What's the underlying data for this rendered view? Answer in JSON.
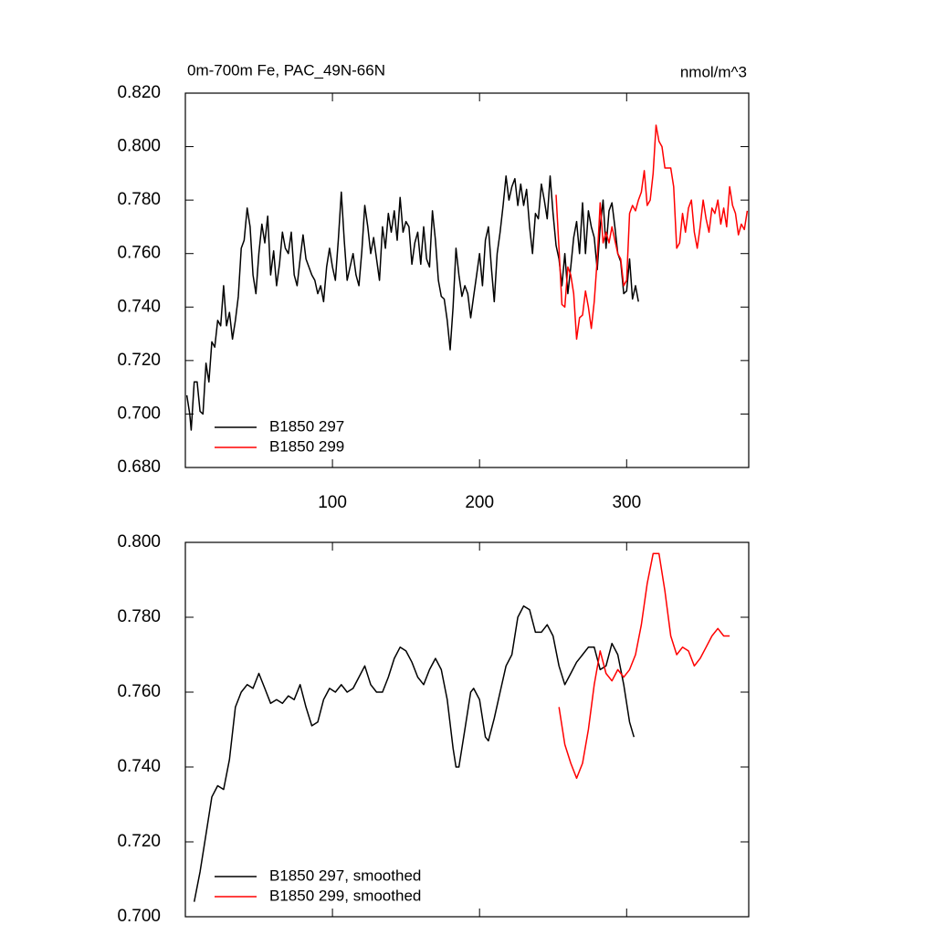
{
  "chart_data": [
    {
      "type": "line",
      "title": "0m-700m Fe, PAC_49N-66N",
      "subtitle": "nmol/m^3",
      "xlim": [
        0,
        383
      ],
      "xticks": [
        100,
        200,
        300
      ],
      "ylim": [
        0.68,
        0.82
      ],
      "yticks": [
        {
          "value": 0.68,
          "label": "0.680"
        },
        {
          "value": 0.7,
          "label": "0.700"
        },
        {
          "value": 0.72,
          "label": "0.720"
        },
        {
          "value": 0.74,
          "label": "0.740"
        },
        {
          "value": 0.76,
          "label": "0.760"
        },
        {
          "value": 0.78,
          "label": "0.780"
        },
        {
          "value": 0.8,
          "label": "0.800"
        },
        {
          "value": 0.82,
          "label": "0.820"
        }
      ],
      "legend": "lower left",
      "series": [
        {
          "name": "B1850 297",
          "color": "#000000",
          "x": [
            1,
            3,
            4,
            6,
            8,
            10,
            12,
            14,
            16,
            18,
            20,
            22,
            24,
            26,
            28,
            30,
            32,
            34,
            36,
            38,
            40,
            42,
            44,
            46,
            48,
            50,
            52,
            54,
            56,
            58,
            60,
            62,
            64,
            66,
            68,
            70,
            72,
            74,
            76,
            78,
            80,
            82,
            84,
            86,
            88,
            90,
            92,
            94,
            96,
            98,
            100,
            102,
            104,
            106,
            108,
            110,
            112,
            114,
            116,
            118,
            120,
            122,
            124,
            126,
            128,
            130,
            132,
            134,
            136,
            138,
            140,
            142,
            144,
            146,
            148,
            150,
            152,
            154,
            156,
            158,
            160,
            162,
            164,
            166,
            168,
            170,
            172,
            174,
            176,
            178,
            180,
            182,
            184,
            186,
            188,
            190,
            192,
            194,
            196,
            198,
            200,
            202,
            204,
            206,
            208,
            210,
            212,
            214,
            216,
            218,
            220,
            222,
            224,
            226,
            228,
            230,
            232,
            234,
            236,
            238,
            240,
            242,
            244,
            246,
            248,
            250,
            252,
            254,
            256,
            258,
            260,
            262,
            264,
            266,
            268,
            270,
            272,
            274,
            276,
            278,
            280,
            282,
            284,
            286,
            288,
            290,
            292,
            294,
            296,
            298,
            300,
            302,
            304,
            306,
            308
          ],
          "values": [
            0.707,
            0.7,
            0.694,
            0.712,
            0.712,
            0.701,
            0.7,
            0.719,
            0.712,
            0.727,
            0.725,
            0.735,
            0.733,
            0.748,
            0.733,
            0.738,
            0.728,
            0.735,
            0.744,
            0.762,
            0.765,
            0.777,
            0.77,
            0.752,
            0.745,
            0.76,
            0.771,
            0.764,
            0.774,
            0.752,
            0.761,
            0.748,
            0.756,
            0.768,
            0.762,
            0.76,
            0.768,
            0.752,
            0.748,
            0.758,
            0.767,
            0.758,
            0.755,
            0.752,
            0.75,
            0.745,
            0.748,
            0.742,
            0.755,
            0.762,
            0.755,
            0.75,
            0.765,
            0.783,
            0.765,
            0.75,
            0.755,
            0.76,
            0.752,
            0.748,
            0.761,
            0.778,
            0.77,
            0.76,
            0.766,
            0.758,
            0.75,
            0.77,
            0.762,
            0.775,
            0.768,
            0.776,
            0.765,
            0.781,
            0.768,
            0.772,
            0.77,
            0.756,
            0.764,
            0.768,
            0.756,
            0.77,
            0.758,
            0.755,
            0.776,
            0.765,
            0.75,
            0.744,
            0.743,
            0.735,
            0.724,
            0.74,
            0.762,
            0.752,
            0.744,
            0.748,
            0.745,
            0.736,
            0.744,
            0.752,
            0.76,
            0.748,
            0.765,
            0.77,
            0.755,
            0.742,
            0.76,
            0.768,
            0.778,
            0.789,
            0.78,
            0.785,
            0.788,
            0.778,
            0.786,
            0.778,
            0.784,
            0.77,
            0.76,
            0.775,
            0.773,
            0.786,
            0.78,
            0.773,
            0.789,
            0.775,
            0.763,
            0.758,
            0.748,
            0.76,
            0.745,
            0.755,
            0.766,
            0.772,
            0.76,
            0.779,
            0.76,
            0.776,
            0.77,
            0.766,
            0.754,
            0.77,
            0.78,
            0.762,
            0.776,
            0.779,
            0.77,
            0.76,
            0.757,
            0.745,
            0.746,
            0.758,
            0.743,
            0.748,
            0.742
          ]
        },
        {
          "name": "B1850 299",
          "color": "#ff0000",
          "x": [
            252,
            254,
            256,
            258,
            260,
            262,
            264,
            266,
            268,
            270,
            272,
            274,
            276,
            278,
            280,
            282,
            284,
            286,
            288,
            290,
            292,
            294,
            296,
            298,
            300,
            302,
            304,
            306,
            308,
            310,
            312,
            314,
            316,
            318,
            320,
            322,
            324,
            326,
            328,
            330,
            332,
            334,
            336,
            338,
            340,
            342,
            344,
            346,
            348,
            350,
            352,
            354,
            356,
            358,
            360,
            362,
            364,
            366,
            368,
            370,
            372,
            374,
            376,
            378,
            380,
            382
          ],
          "values": [
            0.782,
            0.762,
            0.741,
            0.74,
            0.755,
            0.752,
            0.745,
            0.728,
            0.736,
            0.737,
            0.746,
            0.74,
            0.732,
            0.742,
            0.758,
            0.779,
            0.764,
            0.768,
            0.764,
            0.77,
            0.765,
            0.76,
            0.758,
            0.748,
            0.75,
            0.775,
            0.778,
            0.776,
            0.78,
            0.783,
            0.791,
            0.778,
            0.78,
            0.79,
            0.808,
            0.802,
            0.8,
            0.792,
            0.792,
            0.792,
            0.785,
            0.762,
            0.764,
            0.775,
            0.768,
            0.777,
            0.78,
            0.768,
            0.762,
            0.77,
            0.78,
            0.773,
            0.768,
            0.777,
            0.775,
            0.78,
            0.771,
            0.777,
            0.77,
            0.785,
            0.778,
            0.775,
            0.767,
            0.771,
            0.769,
            0.776
          ]
        }
      ]
    },
    {
      "type": "line",
      "xlim": [
        0,
        383
      ],
      "xticks": [
        100,
        200,
        300
      ],
      "ylim": [
        0.7,
        0.8
      ],
      "yticks": [
        {
          "value": 0.7,
          "label": "0.700"
        },
        {
          "value": 0.72,
          "label": "0.720"
        },
        {
          "value": 0.74,
          "label": "0.740"
        },
        {
          "value": 0.76,
          "label": "0.760"
        },
        {
          "value": 0.78,
          "label": "0.780"
        },
        {
          "value": 0.8,
          "label": "0.800"
        }
      ],
      "legend": "lower left",
      "series": [
        {
          "name": "B1850 297, smoothed",
          "color": "#000000",
          "x": [
            6,
            10,
            14,
            18,
            22,
            26,
            30,
            34,
            38,
            42,
            46,
            50,
            54,
            58,
            62,
            66,
            70,
            74,
            78,
            82,
            86,
            90,
            94,
            98,
            102,
            106,
            110,
            114,
            118,
            122,
            126,
            130,
            134,
            138,
            142,
            146,
            150,
            154,
            158,
            162,
            166,
            170,
            174,
            178,
            182,
            184,
            186,
            190,
            194,
            196,
            200,
            204,
            206,
            210,
            214,
            218,
            222,
            226,
            230,
            234,
            238,
            242,
            246,
            250,
            254,
            258,
            262,
            266,
            270,
            274,
            278,
            282,
            286,
            290,
            294,
            298,
            302,
            305
          ],
          "values": [
            0.704,
            0.712,
            0.722,
            0.732,
            0.735,
            0.734,
            0.742,
            0.756,
            0.76,
            0.762,
            0.761,
            0.765,
            0.761,
            0.757,
            0.758,
            0.757,
            0.759,
            0.758,
            0.762,
            0.756,
            0.751,
            0.752,
            0.758,
            0.761,
            0.76,
            0.762,
            0.76,
            0.761,
            0.764,
            0.767,
            0.762,
            0.76,
            0.76,
            0.764,
            0.769,
            0.772,
            0.771,
            0.768,
            0.764,
            0.762,
            0.766,
            0.769,
            0.766,
            0.758,
            0.745,
            0.74,
            0.74,
            0.75,
            0.76,
            0.761,
            0.758,
            0.748,
            0.747,
            0.753,
            0.76,
            0.767,
            0.77,
            0.78,
            0.783,
            0.782,
            0.776,
            0.776,
            0.778,
            0.775,
            0.767,
            0.762,
            0.765,
            0.768,
            0.77,
            0.772,
            0.772,
            0.766,
            0.767,
            0.773,
            0.77,
            0.762,
            0.752,
            0.748
          ]
        },
        {
          "name": "B1850 299, smoothed",
          "color": "#ff0000",
          "x": [
            254,
            258,
            262,
            266,
            270,
            274,
            278,
            282,
            286,
            290,
            294,
            298,
            302,
            306,
            310,
            314,
            318,
            322,
            326,
            330,
            334,
            338,
            342,
            346,
            350,
            354,
            358,
            362,
            366,
            370
          ],
          "values": [
            0.756,
            0.746,
            0.741,
            0.737,
            0.741,
            0.75,
            0.762,
            0.771,
            0.765,
            0.763,
            0.766,
            0.764,
            0.766,
            0.77,
            0.778,
            0.789,
            0.797,
            0.797,
            0.787,
            0.775,
            0.77,
            0.772,
            0.771,
            0.767,
            0.769,
            0.772,
            0.775,
            0.777,
            0.775,
            0.775
          ]
        }
      ]
    }
  ]
}
